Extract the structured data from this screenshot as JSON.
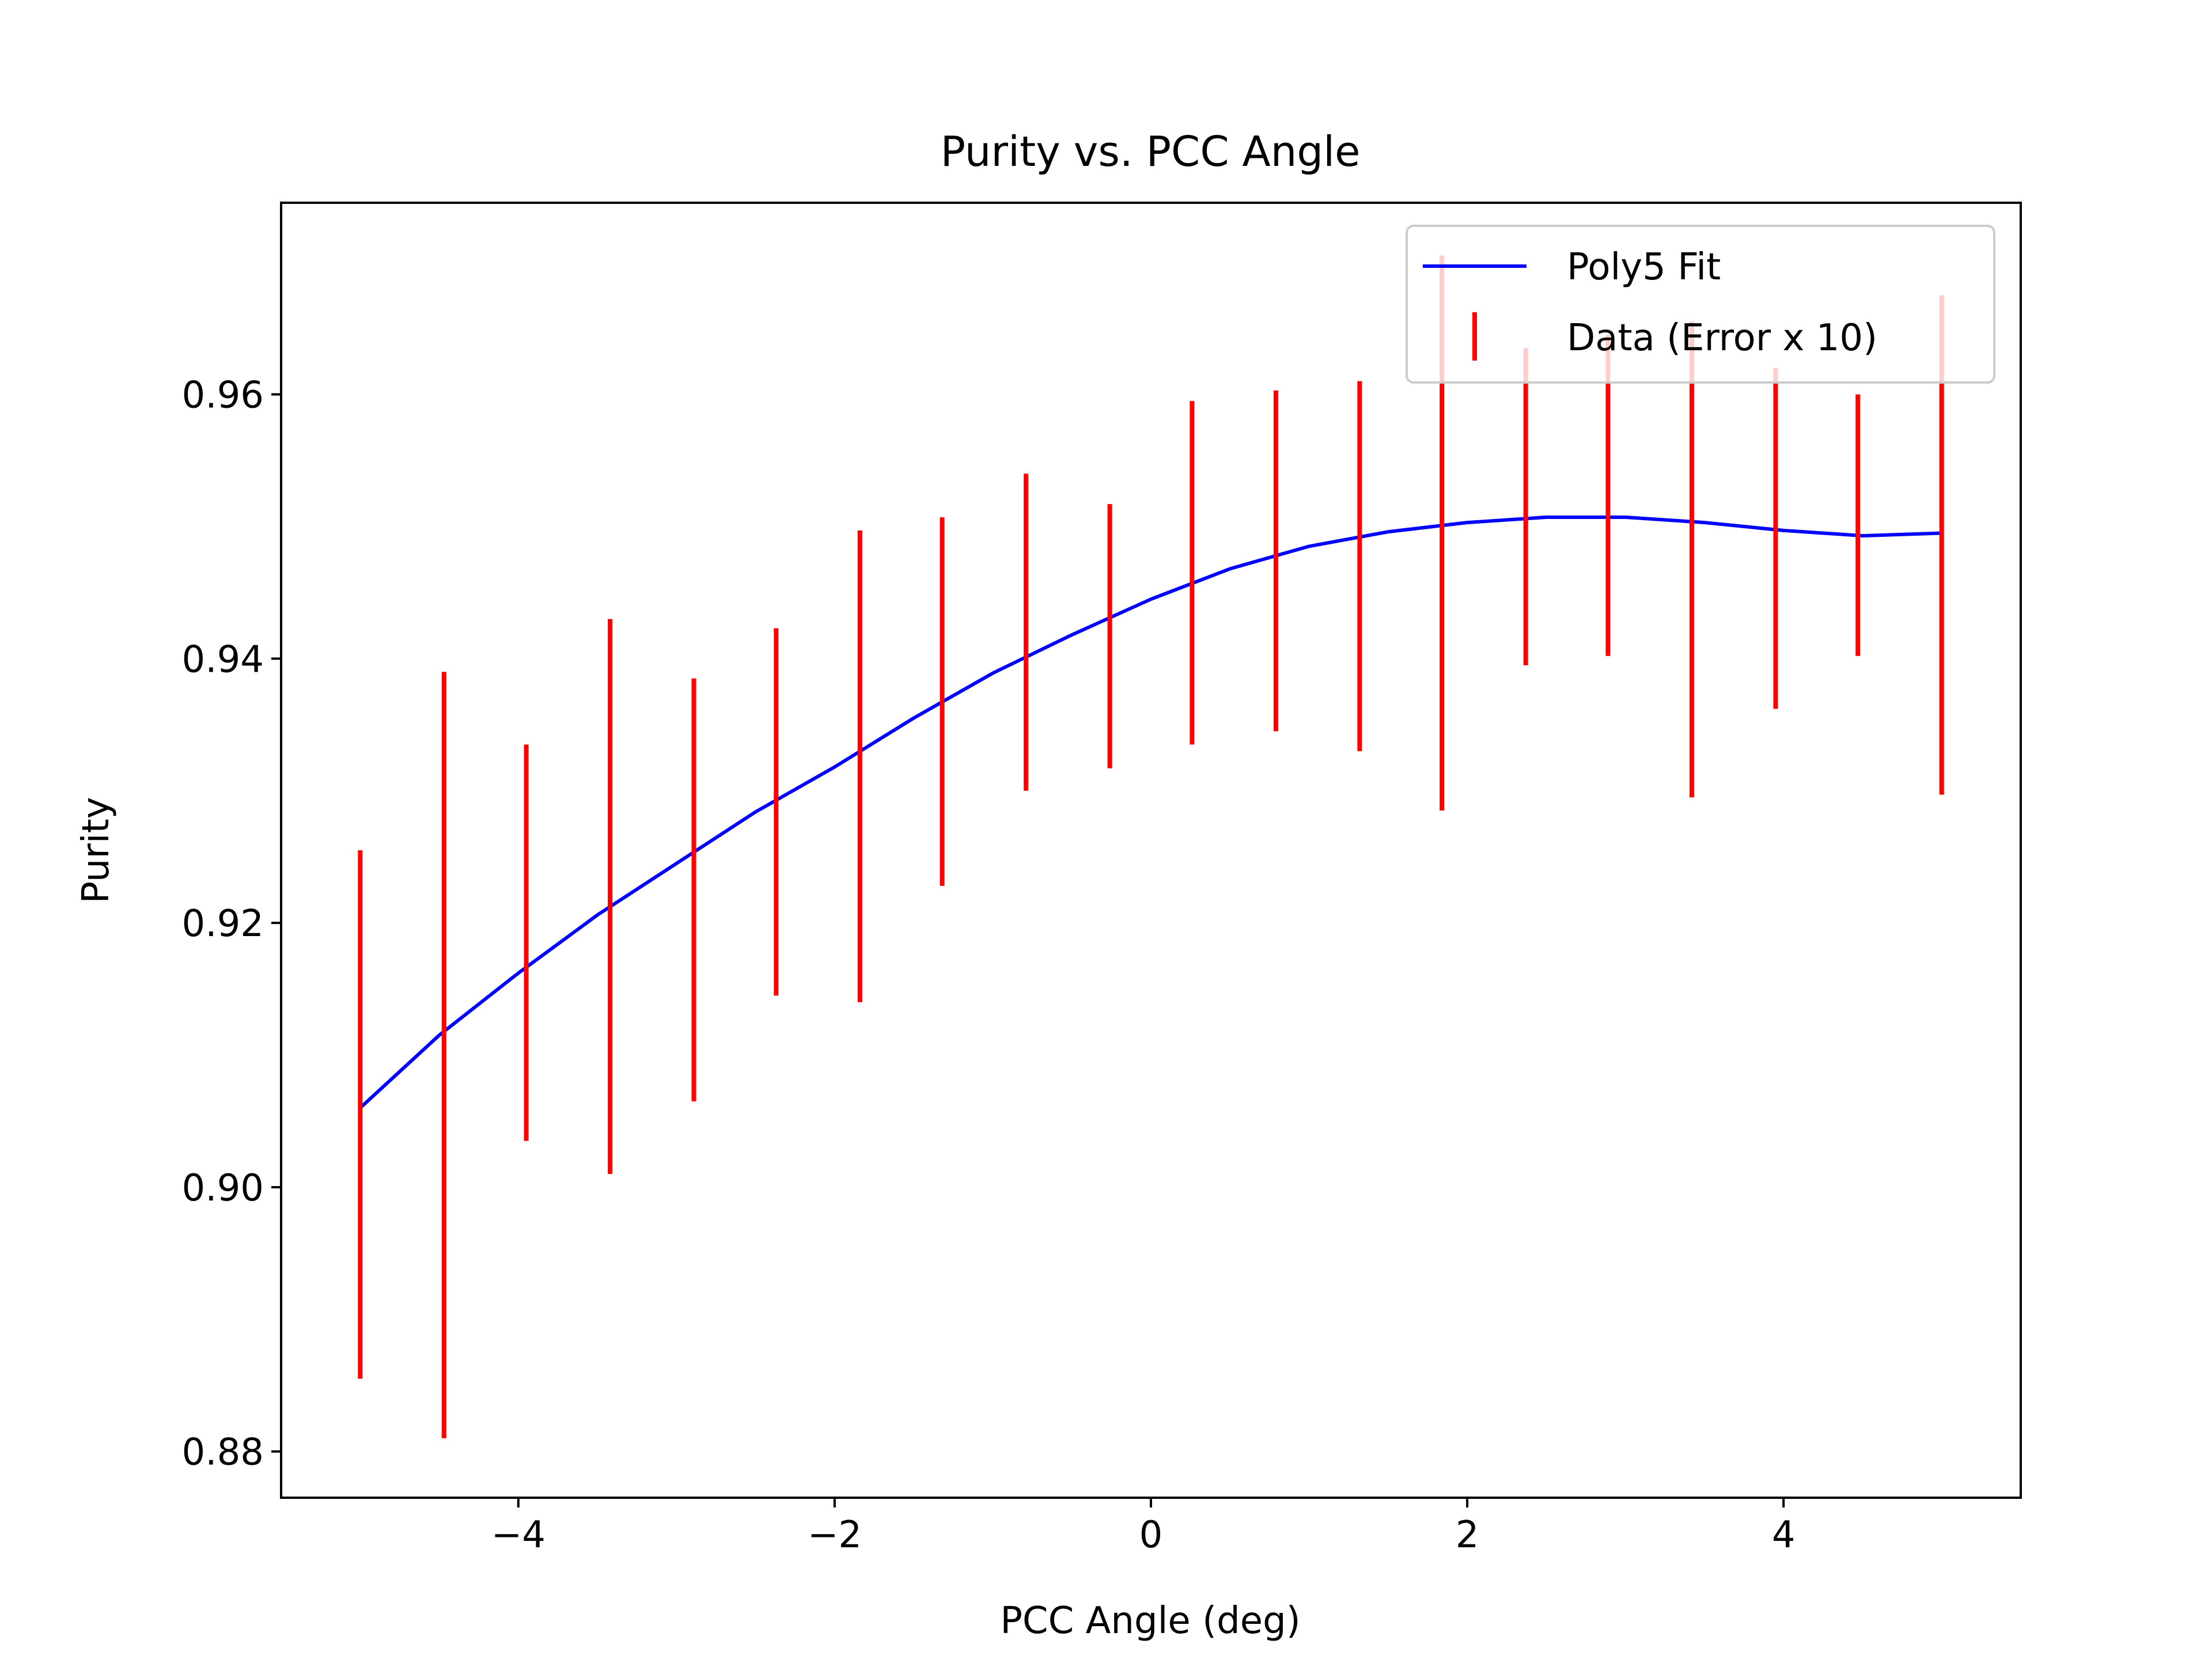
{
  "chart_data": {
    "type": "line",
    "title": "Purity vs. PCC Angle",
    "xlabel": "PCC Angle (deg)",
    "ylabel": "Purity",
    "xlim": [
      -5.5,
      5.5
    ],
    "ylim": [
      0.8765,
      0.9745
    ],
    "xticks": [
      -4,
      -2,
      0,
      2,
      4
    ],
    "xtick_labels": [
      "−4",
      "−2",
      "0",
      "2",
      "4"
    ],
    "yticks": [
      0.88,
      0.9,
      0.92,
      0.94,
      0.96
    ],
    "ytick_labels": [
      "0.88",
      "0.90",
      "0.92",
      "0.94",
      "0.96"
    ],
    "grid": false,
    "legend_position": "top-right",
    "series": [
      {
        "name": "Poly5 Fit",
        "kind": "line",
        "color": "#0000ff",
        "x": [
          -5,
          -4.5,
          -4,
          -3.5,
          -3,
          -2.5,
          -2,
          -1.5,
          -1,
          -0.5,
          0,
          0.5,
          1,
          1.5,
          2,
          2.5,
          3,
          3.5,
          4,
          4.5,
          5
        ],
        "y": [
          0.906,
          0.9115,
          0.9162,
          0.9206,
          0.9245,
          0.9284,
          0.9318,
          0.9355,
          0.9389,
          0.9418,
          0.9445,
          0.9468,
          0.9485,
          0.9496,
          0.9503,
          0.9507,
          0.9507,
          0.9503,
          0.9497,
          0.9493,
          0.9495
        ]
      },
      {
        "name": "Data (Error x 10)",
        "kind": "errorbar",
        "color": "#ff0000",
        "x": [
          -5.0,
          -4.47,
          -3.95,
          -3.42,
          -2.89,
          -2.37,
          -1.84,
          -1.32,
          -0.79,
          -0.26,
          0.26,
          0.79,
          1.32,
          1.84,
          2.37,
          2.89,
          3.42,
          3.95,
          4.47,
          5.0
        ],
        "y_low": [
          0.8855,
          0.881,
          0.9035,
          0.901,
          0.9065,
          0.9145,
          0.914,
          0.9228,
          0.93,
          0.9317,
          0.9335,
          0.9345,
          0.933,
          0.9285,
          0.9395,
          0.9402,
          0.9295,
          0.9362,
          0.9402,
          0.9297
        ],
        "y_high": [
          0.9255,
          0.939,
          0.9335,
          0.943,
          0.9385,
          0.9423,
          0.9497,
          0.9507,
          0.954,
          0.9517,
          0.9595,
          0.9603,
          0.961,
          0.9705,
          0.9635,
          0.9645,
          0.9655,
          0.962,
          0.96,
          0.9675
        ]
      }
    ]
  }
}
